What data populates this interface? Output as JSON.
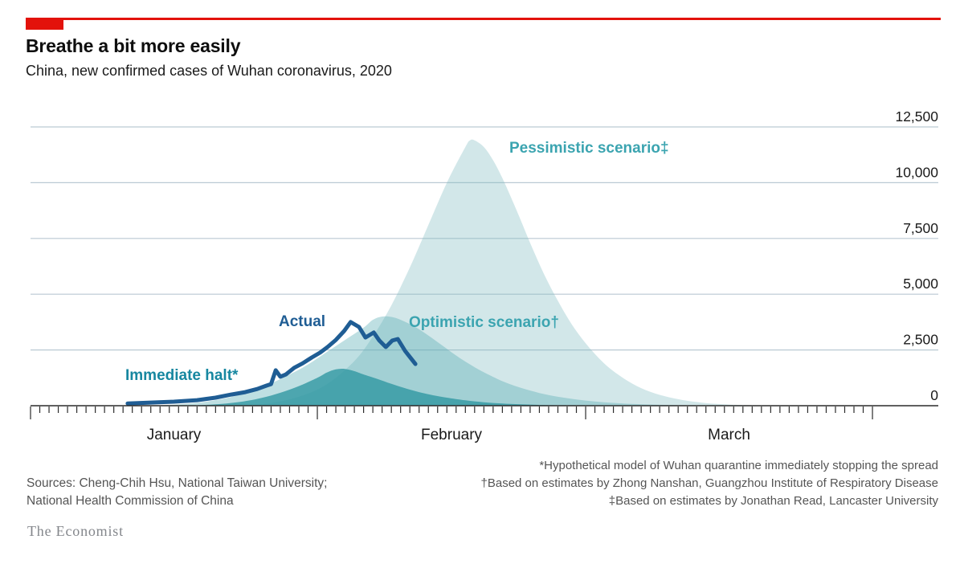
{
  "header": {
    "title": "Breathe a bit more easily",
    "subtitle": "China, new confirmed cases of Wuhan coronavirus, 2020"
  },
  "colors": {
    "accent_red": "#e3120b",
    "grid": "#bac9d3",
    "axis": "#2b2b2b",
    "tick_text": "#1a1a1a",
    "actual_line": "#1f5d94",
    "halt_fill": "#2d96a0",
    "optimistic_fill": "#55abb4",
    "pessimistic_fill": "#7db9c0",
    "scenario_label": "#3ba4b0",
    "halt_label": "#1787a0",
    "actual_label": "#1f5d94"
  },
  "chart_data": {
    "type": "area",
    "title": "Breathe a bit more easily",
    "subtitle": "China, new confirmed cases of Wuhan coronavirus, 2020",
    "unit": "new confirmed cases per day",
    "x_axis": {
      "start": "2020-01-01",
      "end": "2020-03-31",
      "total_days": 92,
      "tick_interval": "daily",
      "month_tick_days": [
        1,
        32,
        61,
        92
      ],
      "month_labels": [
        "January",
        "February",
        "March"
      ],
      "month_spans_days": [
        [
          1,
          32
        ],
        [
          32,
          61
        ],
        [
          61,
          92
        ]
      ]
    },
    "y_axis": {
      "min": 0,
      "max": 12500,
      "tick_values": [
        0,
        2500,
        5000,
        7500,
        10000,
        12500
      ],
      "tick_labels": [
        "0",
        "2,500",
        "5,000",
        "7,500",
        "10,000",
        "12,500"
      ],
      "gridlines": true,
      "labels_position": "right"
    },
    "series": [
      {
        "name": "pessimistic",
        "label": "Pessimistic scenario‡",
        "type": "area",
        "fill": "#7db9c0",
        "fill_opacity": 0.35,
        "peak": {
          "day": 48.5,
          "value": 11900,
          "approx_date": "Feb 17"
        },
        "points": [
          [
            24,
            0
          ],
          [
            27,
            120
          ],
          [
            30,
            400
          ],
          [
            33,
            950
          ],
          [
            36,
            2000
          ],
          [
            38,
            3100
          ],
          [
            40,
            4500
          ],
          [
            42,
            6200
          ],
          [
            44,
            8100
          ],
          [
            46,
            10000
          ],
          [
            48,
            11600
          ],
          [
            48.5,
            11900
          ],
          [
            49,
            11900
          ],
          [
            50,
            11600
          ],
          [
            51,
            11000
          ],
          [
            52,
            10200
          ],
          [
            53.5,
            8800
          ],
          [
            55,
            7300
          ],
          [
            56.5,
            5900
          ],
          [
            58,
            4700
          ],
          [
            59.5,
            3650
          ],
          [
            61,
            2800
          ],
          [
            62.5,
            2100
          ],
          [
            64,
            1550
          ],
          [
            66,
            1000
          ],
          [
            68,
            620
          ],
          [
            70,
            380
          ],
          [
            72,
            220
          ],
          [
            74,
            120
          ],
          [
            76,
            60
          ],
          [
            78,
            25
          ],
          [
            81,
            0
          ]
        ]
      },
      {
        "name": "optimistic",
        "label": "Optimistic scenario†",
        "type": "area",
        "fill": "#55abb4",
        "fill_opacity": 0.38,
        "peak": {
          "day": 39,
          "value": 4000,
          "approx_date": "Feb 8"
        },
        "points": [
          [
            14,
            0
          ],
          [
            17,
            60
          ],
          [
            20,
            180
          ],
          [
            23,
            420
          ],
          [
            26,
            820
          ],
          [
            29,
            1400
          ],
          [
            31,
            1850
          ],
          [
            33,
            2400
          ],
          [
            35,
            2950
          ],
          [
            37,
            3500
          ],
          [
            38,
            3850
          ],
          [
            39,
            4000
          ],
          [
            40,
            3980
          ],
          [
            41,
            3850
          ],
          [
            42.5,
            3550
          ],
          [
            44,
            3150
          ],
          [
            45.5,
            2700
          ],
          [
            47,
            2250
          ],
          [
            48.5,
            1850
          ],
          [
            50,
            1500
          ],
          [
            52,
            1100
          ],
          [
            54,
            800
          ],
          [
            56,
            570
          ],
          [
            58,
            400
          ],
          [
            60,
            280
          ],
          [
            62,
            190
          ],
          [
            64,
            125
          ],
          [
            66,
            80
          ],
          [
            69,
            40
          ],
          [
            72,
            15
          ],
          [
            75,
            0
          ]
        ]
      },
      {
        "name": "immediate_halt",
        "label": "Immediate halt*",
        "type": "area",
        "fill": "#2d96a0",
        "fill_opacity": 0.78,
        "peak": {
          "day": 34.5,
          "value": 1650,
          "approx_date": "Feb 3"
        },
        "points": [
          [
            18,
            0
          ],
          [
            21,
            60
          ],
          [
            24,
            190
          ],
          [
            26,
            350
          ],
          [
            28,
            580
          ],
          [
            30,
            880
          ],
          [
            32,
            1250
          ],
          [
            33,
            1480
          ],
          [
            34,
            1630
          ],
          [
            35,
            1650
          ],
          [
            36,
            1550
          ],
          [
            37,
            1400
          ],
          [
            38.5,
            1200
          ],
          [
            40,
            980
          ],
          [
            41.5,
            780
          ],
          [
            43,
            610
          ],
          [
            44.5,
            470
          ],
          [
            46,
            360
          ],
          [
            48,
            240
          ],
          [
            50,
            155
          ],
          [
            52,
            100
          ],
          [
            54,
            60
          ],
          [
            56,
            35
          ],
          [
            58,
            18
          ],
          [
            61,
            5
          ],
          [
            63,
            0
          ]
        ]
      },
      {
        "name": "actual",
        "label": "Actual",
        "type": "line",
        "stroke": "#1f5d94",
        "stroke_width": 5,
        "peak": {
          "day": 35.6,
          "value": 3750,
          "approx_date": "Feb 4"
        },
        "points": [
          [
            11.5,
            100
          ],
          [
            14,
            140
          ],
          [
            16.5,
            180
          ],
          [
            19,
            250
          ],
          [
            21,
            360
          ],
          [
            22.7,
            500
          ],
          [
            24.2,
            610
          ],
          [
            25.5,
            750
          ],
          [
            26.5,
            900
          ],
          [
            27,
            970
          ],
          [
            27.5,
            1590
          ],
          [
            28,
            1300
          ],
          [
            28.6,
            1400
          ],
          [
            29.5,
            1700
          ],
          [
            30.4,
            1900
          ],
          [
            31.4,
            2160
          ],
          [
            32.3,
            2380
          ],
          [
            33.1,
            2630
          ],
          [
            34,
            2950
          ],
          [
            34.9,
            3350
          ],
          [
            35.6,
            3750
          ],
          [
            36.5,
            3530
          ],
          [
            37.2,
            3060
          ],
          [
            38.1,
            3280
          ],
          [
            38.7,
            2920
          ],
          [
            39.4,
            2630
          ],
          [
            40.1,
            2920
          ],
          [
            40.7,
            2990
          ],
          [
            41.5,
            2450
          ],
          [
            42.6,
            1870
          ]
        ]
      }
    ],
    "legend_position": "inline-annotations",
    "day_reference": "day 1 = Jan 1 2020, day 32 = Feb 1, day 61 = Mar 1"
  },
  "annotations": {
    "pessimistic": "Pessimistic scenario‡",
    "optimistic": "Optimistic scenario†",
    "actual": "Actual",
    "halt": "Immediate halt*"
  },
  "footnotes": [
    "*Hypothetical model of Wuhan quarantine immediately stopping the spread",
    "†Based on estimates by Zhong Nanshan, Guangzhou Institute of Respiratory Disease",
    "‡Based on estimates by Jonathan Read, Lancaster University"
  ],
  "sources": [
    "Sources: Cheng-Chih Hsu, National Taiwan University;",
    "National Health Commission of China"
  ],
  "branding": "The Economist"
}
